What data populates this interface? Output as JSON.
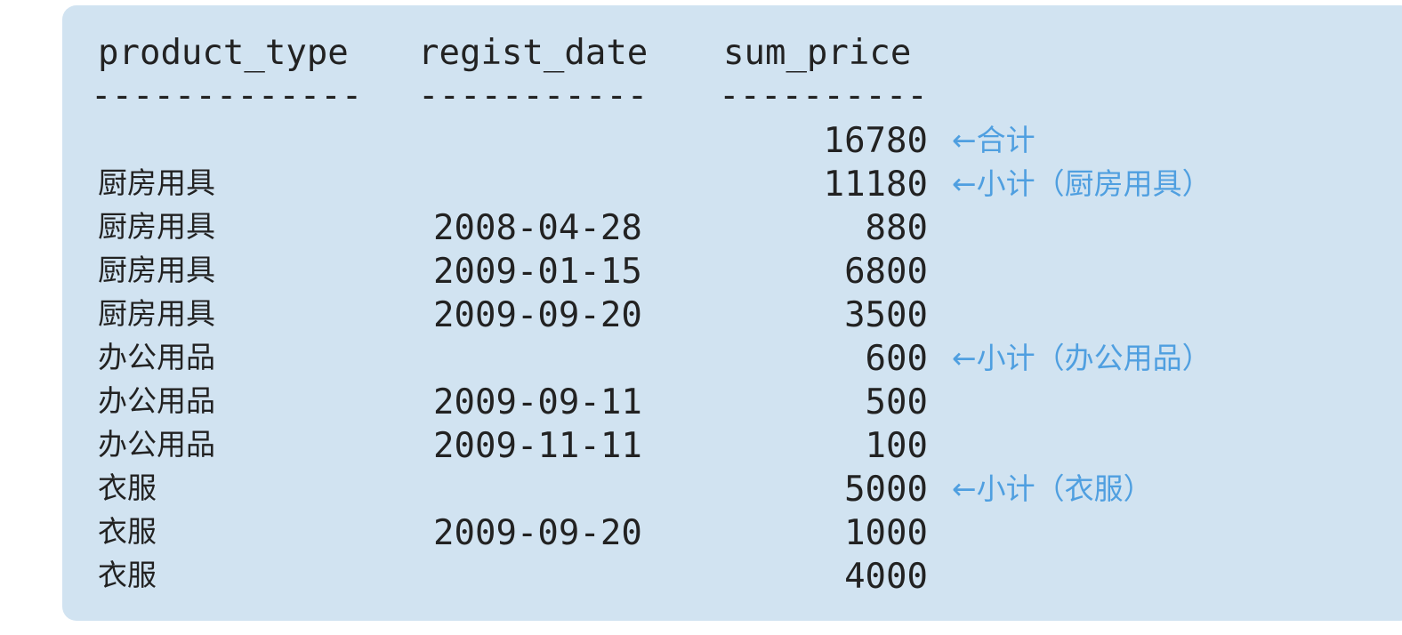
{
  "headers": {
    "product_type": "product_type",
    "regist_date": "regist_date",
    "sum_price": "sum_price"
  },
  "separators": {
    "product_type": "-------------",
    "regist_date": "-----------",
    "sum_price": "----------"
  },
  "rows": [
    {
      "product_type": "",
      "regist_date": "",
      "sum_price": "16780",
      "note": "←合计"
    },
    {
      "product_type": "厨房用具",
      "regist_date": "",
      "sum_price": "11180",
      "note": "←小计（厨房用具）"
    },
    {
      "product_type": "厨房用具",
      "regist_date": "2008-04-28",
      "sum_price": "880",
      "note": ""
    },
    {
      "product_type": "厨房用具",
      "regist_date": "2009-01-15",
      "sum_price": "6800",
      "note": ""
    },
    {
      "product_type": "厨房用具",
      "regist_date": "2009-09-20",
      "sum_price": "3500",
      "note": ""
    },
    {
      "product_type": "办公用品",
      "regist_date": "",
      "sum_price": "600",
      "note": "←小计（办公用品）"
    },
    {
      "product_type": "办公用品",
      "regist_date": "2009-09-11",
      "sum_price": "500",
      "note": ""
    },
    {
      "product_type": "办公用品",
      "regist_date": "2009-11-11",
      "sum_price": "100",
      "note": ""
    },
    {
      "product_type": "衣服",
      "regist_date": "",
      "sum_price": "5000",
      "note": "←小计（衣服）"
    },
    {
      "product_type": "衣服",
      "regist_date": "2009-09-20",
      "sum_price": "1000",
      "note": ""
    },
    {
      "product_type": "衣服",
      "regist_date": "",
      "sum_price": "4000",
      "note": ""
    }
  ],
  "colors": {
    "panel_background": "#d1e3f1",
    "text": "#222222",
    "annotation": "#4f9fe0"
  }
}
